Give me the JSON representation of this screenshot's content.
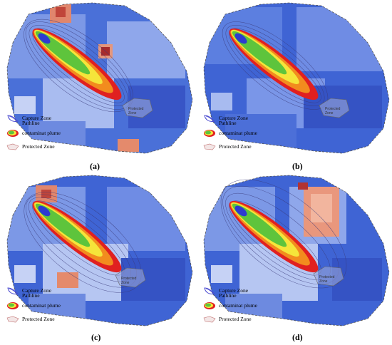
{
  "legend": {
    "capture_zone": "Capture Zone",
    "pathline": "Pathline",
    "plume": "contaminat plume",
    "protected_zone": "Protected Zone",
    "icon_small_text": "Protected Zone"
  },
  "panels": [
    {
      "id": "a",
      "label": "(a)",
      "pz_label": "Protected Zone"
    },
    {
      "id": "b",
      "label": "(b)",
      "pz_label": "Protected Zone"
    },
    {
      "id": "c",
      "label": "(c)",
      "pz_label": "Protected Zone"
    },
    {
      "id": "d",
      "label": "(d)",
      "pz_label": "Protected Zone"
    }
  ],
  "colors": {
    "low": "#3a5fd0",
    "mid": "#9fb4ee",
    "high": "#e98a72",
    "hot": "#b23333",
    "plume_outer": "#e02020",
    "plume_mid": "#f28c1e",
    "plume_yellow": "#f5e53a",
    "plume_green": "#5ec43c",
    "plume_blue": "#2d3ad0"
  }
}
